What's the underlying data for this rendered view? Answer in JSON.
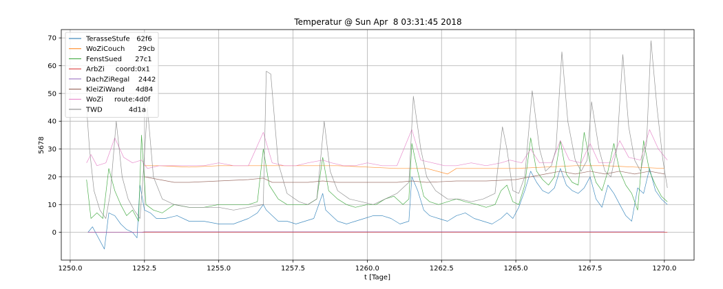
{
  "chart_data": {
    "type": "line",
    "title": "Temperatur @ Sun Apr  8 03:31:45 2018",
    "xlabel": "t [Tage]",
    "ylabel": "5678",
    "xlim": [
      1249.7,
      1271.0
    ],
    "ylim": [
      -10,
      73
    ],
    "xticks": [
      1250.0,
      1252.5,
      1255.0,
      1257.5,
      1260.0,
      1262.5,
      1265.0,
      1267.5,
      1270.0
    ],
    "xtick_labels": [
      "1250.0",
      "1252.5",
      "1255.0",
      "1257.5",
      "1260.0",
      "1262.5",
      "1265.0",
      "1267.5",
      "1270.0"
    ],
    "yticks": [
      0,
      10,
      20,
      30,
      40,
      50,
      60,
      70
    ],
    "ytick_labels": [
      "0",
      "10",
      "20",
      "30",
      "40",
      "50",
      "60",
      "70"
    ],
    "grid": true,
    "legend_position": "upper-left",
    "series": [
      {
        "name": "TerasseStufe   62f6",
        "color": "#1f77b4",
        "x": [
          1250.6,
          1250.75,
          1250.95,
          1251.15,
          1251.3,
          1251.5,
          1251.7,
          1251.9,
          1252.1,
          1252.25,
          1252.35,
          1252.5,
          1252.7,
          1252.9,
          1253.2,
          1253.6,
          1254.0,
          1254.5,
          1255.0,
          1255.5,
          1256.0,
          1256.3,
          1256.5,
          1256.6,
          1256.8,
          1257.0,
          1257.3,
          1257.6,
          1257.9,
          1258.2,
          1258.5,
          1258.6,
          1258.8,
          1259.0,
          1259.3,
          1259.6,
          1259.9,
          1260.2,
          1260.5,
          1260.8,
          1261.1,
          1261.4,
          1261.5,
          1261.7,
          1261.9,
          1262.1,
          1262.4,
          1262.7,
          1263.0,
          1263.3,
          1263.6,
          1263.9,
          1264.2,
          1264.5,
          1264.7,
          1264.9,
          1265.1,
          1265.3,
          1265.5,
          1265.7,
          1265.9,
          1266.1,
          1266.3,
          1266.5,
          1266.7,
          1266.9,
          1267.1,
          1267.3,
          1267.5,
          1267.7,
          1267.9,
          1268.1,
          1268.3,
          1268.5,
          1268.7,
          1268.9,
          1269.1,
          1269.3,
          1269.5,
          1269.7,
          1269.9,
          1270.1
        ],
        "y": [
          0,
          2,
          -2,
          -6,
          7,
          6,
          3,
          1,
          0,
          -2,
          17,
          8,
          7,
          5,
          5,
          6,
          4,
          4,
          3,
          3,
          5,
          7,
          10,
          8,
          6,
          4,
          4,
          3,
          4,
          5,
          14,
          8,
          6,
          4,
          3,
          4,
          5,
          6,
          6,
          5,
          3,
          4,
          20,
          15,
          8,
          6,
          5,
          4,
          6,
          7,
          5,
          4,
          3,
          5,
          7,
          5,
          9,
          15,
          22,
          18,
          15,
          14,
          16,
          23,
          17,
          15,
          14,
          16,
          20,
          12,
          9,
          17,
          14,
          10,
          6,
          4,
          16,
          14,
          23,
          15,
          12,
          10
        ]
      },
      {
        "name": "WoZiCouch      29cb",
        "color": "#ff7f0e",
        "x": [
          1252.5,
          1253.0,
          1254.0,
          1255.0,
          1256.0,
          1257.0,
          1258.0,
          1259.0,
          1260.0,
          1261.0,
          1262.0,
          1262.7,
          1263.0,
          1264.0,
          1265.0,
          1266.0,
          1267.0,
          1268.0,
          1269.0,
          1270.0
        ],
        "y": [
          24,
          24,
          23.5,
          24,
          24,
          24,
          24,
          24,
          23.5,
          23,
          23,
          21,
          23,
          23,
          23,
          23.5,
          24,
          24,
          23.5,
          23
        ]
      },
      {
        "name": "FenstSued      27c1",
        "color": "#2ca02c",
        "x": [
          1250.55,
          1250.7,
          1250.9,
          1251.1,
          1251.3,
          1251.5,
          1251.7,
          1251.9,
          1252.1,
          1252.3,
          1252.4,
          1252.55,
          1252.8,
          1253.1,
          1253.5,
          1254.0,
          1254.5,
          1255.0,
          1255.5,
          1256.0,
          1256.3,
          1256.5,
          1256.7,
          1257.0,
          1257.3,
          1257.6,
          1258.0,
          1258.3,
          1258.5,
          1258.7,
          1259.0,
          1259.3,
          1259.6,
          1260.0,
          1260.3,
          1260.6,
          1260.9,
          1261.2,
          1261.4,
          1261.5,
          1261.7,
          1261.9,
          1262.1,
          1262.4,
          1262.7,
          1263.0,
          1263.3,
          1263.7,
          1264.0,
          1264.3,
          1264.5,
          1264.7,
          1264.9,
          1265.1,
          1265.3,
          1265.5,
          1265.7,
          1265.9,
          1266.1,
          1266.3,
          1266.5,
          1266.7,
          1266.9,
          1267.1,
          1267.3,
          1267.5,
          1267.7,
          1267.9,
          1268.1,
          1268.3,
          1268.5,
          1268.7,
          1268.9,
          1269.1,
          1269.3,
          1269.5,
          1269.7,
          1269.9,
          1270.1
        ],
        "y": [
          19,
          5,
          7,
          5,
          23,
          15,
          10,
          6,
          8,
          4,
          35,
          10,
          8,
          7,
          10,
          9,
          9,
          10,
          10,
          10,
          11,
          30,
          17,
          12,
          10,
          10,
          10,
          12,
          27,
          15,
          12,
          10,
          9,
          10,
          10,
          12,
          13,
          10,
          12,
          32,
          22,
          13,
          11,
          10,
          11,
          12,
          11,
          10,
          9,
          10,
          15,
          17,
          11,
          10,
          17,
          34,
          22,
          19,
          17,
          20,
          33,
          21,
          18,
          17,
          36,
          25,
          18,
          15,
          22,
          32,
          22,
          17,
          14,
          8,
          33,
          22,
          17,
          13,
          11
        ]
      },
      {
        "name": "ArbZi     coord:0x1",
        "color": "#d62728",
        "x": [
          1250.6,
          1270.1
        ],
        "y": [
          0,
          0
        ]
      },
      {
        "name": "DachZiRegal    2442",
        "color": "#9467bd",
        "x": [
          1250.6,
          1252.4,
          1252.5,
          1253.0,
          1254.0,
          1255.0,
          1256.0,
          1256.5,
          1257.0,
          1258.0,
          1258.5,
          1259.0,
          1260.0,
          1261.0,
          1261.5,
          1262.0,
          1263.0,
          1264.0,
          1265.0,
          1266.0,
          1267.0,
          1267.5,
          1268.0,
          1269.0,
          1270.0
        ],
        "y": [
          0,
          0,
          0.2,
          0.2,
          0.2,
          0.2,
          0.2,
          0.2,
          0.2,
          0.2,
          0.2,
          0.2,
          0.2,
          0.2,
          0.2,
          0.2,
          0.2,
          0.2,
          0.2,
          0.2,
          0.2,
          0.2,
          0.2,
          0.2,
          0.2
        ]
      },
      {
        "name": "KleiZiWand     4d84",
        "color": "#8c564b",
        "x": [
          1252.5,
          1253.0,
          1253.5,
          1254.0,
          1255.0,
          1256.0,
          1256.5,
          1256.8,
          1257.5,
          1258.0,
          1258.5,
          1259.0,
          1260.0,
          1261.0,
          1261.5,
          1262.0,
          1263.0,
          1264.0,
          1265.0,
          1265.5,
          1266.0,
          1266.5,
          1267.0,
          1267.5,
          1268.0,
          1268.5,
          1269.0,
          1269.5,
          1270.0
        ],
        "y": [
          20,
          19,
          18,
          18,
          18.5,
          19,
          19.5,
          18,
          18,
          18,
          18.5,
          18,
          18,
          18,
          18.5,
          18,
          18.5,
          18.5,
          19,
          20,
          21,
          22,
          21,
          22,
          21,
          22,
          21,
          22,
          21
        ]
      },
      {
        "name": "WoZi     route:4d0f",
        "color": "#e377c2",
        "x": [
          1250.55,
          1250.7,
          1250.9,
          1251.2,
          1251.5,
          1251.8,
          1252.1,
          1252.4,
          1252.6,
          1253.0,
          1253.5,
          1254.0,
          1254.5,
          1255.0,
          1255.5,
          1256.0,
          1256.5,
          1256.8,
          1257.2,
          1257.6,
          1258.0,
          1258.5,
          1258.8,
          1259.2,
          1259.6,
          1260.0,
          1260.5,
          1261.0,
          1261.5,
          1261.8,
          1262.2,
          1262.6,
          1263.0,
          1263.5,
          1264.0,
          1264.5,
          1264.8,
          1265.2,
          1265.5,
          1265.8,
          1266.2,
          1266.5,
          1266.8,
          1267.2,
          1267.5,
          1267.8,
          1268.2,
          1268.5,
          1268.8,
          1269.2,
          1269.5,
          1269.8,
          1270.1
        ],
        "y": [
          25,
          28,
          24,
          25,
          34,
          27,
          25,
          26,
          23,
          24,
          24,
          24,
          24,
          25,
          24,
          24,
          36,
          25,
          24,
          24,
          25,
          26,
          25,
          24,
          24,
          25,
          24,
          24,
          37,
          26,
          25,
          24,
          24,
          25,
          24,
          25,
          26,
          25,
          30,
          25,
          25,
          33,
          26,
          25,
          32,
          25,
          25,
          33,
          27,
          26,
          37,
          30,
          26
        ]
      },
      {
        "name": "TWD            4d1a",
        "color": "#7f7f7f",
        "x": [
          1250.55,
          1250.65,
          1250.8,
          1251.0,
          1251.2,
          1251.35,
          1251.55,
          1251.75,
          1251.95,
          1252.15,
          1252.35,
          1252.45,
          1252.6,
          1252.8,
          1253.1,
          1253.5,
          1254.0,
          1254.5,
          1255.0,
          1255.5,
          1256.0,
          1256.5,
          1256.6,
          1256.75,
          1257.0,
          1257.3,
          1257.7,
          1258.0,
          1258.3,
          1258.55,
          1258.75,
          1259.0,
          1259.4,
          1259.8,
          1260.2,
          1260.6,
          1261.0,
          1261.4,
          1261.55,
          1261.8,
          1262.0,
          1262.3,
          1262.7,
          1263.1,
          1263.5,
          1263.9,
          1264.3,
          1264.55,
          1264.7,
          1264.9,
          1265.1,
          1265.3,
          1265.55,
          1265.8,
          1266.0,
          1266.2,
          1266.35,
          1266.55,
          1266.75,
          1267.0,
          1267.2,
          1267.4,
          1267.55,
          1267.8,
          1268.0,
          1268.2,
          1268.4,
          1268.6,
          1268.8,
          1269.0,
          1269.2,
          1269.4,
          1269.55,
          1269.75,
          1269.95,
          1270.1
        ],
        "y": [
          45,
          30,
          15,
          8,
          5,
          14,
          40,
          20,
          12,
          8,
          5,
          20,
          45,
          20,
          12,
          10,
          9,
          9,
          9,
          8,
          9,
          10,
          58,
          57,
          25,
          14,
          11,
          10,
          12,
          40,
          22,
          15,
          12,
          11,
          10,
          12,
          14,
          18,
          49,
          30,
          20,
          15,
          12,
          12,
          11,
          12,
          14,
          38,
          30,
          15,
          14,
          20,
          51,
          30,
          22,
          24,
          30,
          65,
          40,
          26,
          22,
          26,
          47,
          30,
          22,
          20,
          30,
          64,
          38,
          26,
          22,
          32,
          69,
          45,
          26,
          16
        ]
      }
    ]
  }
}
